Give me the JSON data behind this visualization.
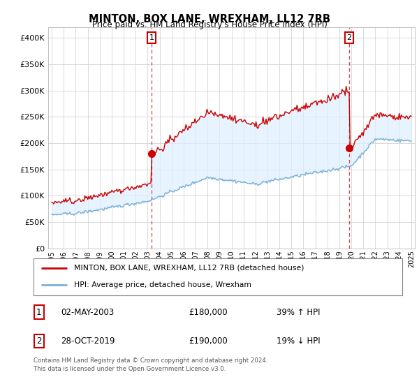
{
  "title": "MINTON, BOX LANE, WREXHAM, LL12 7RB",
  "subtitle": "Price paid vs. HM Land Registry's House Price Index (HPI)",
  "ylabel_ticks": [
    "£0",
    "£50K",
    "£100K",
    "£150K",
    "£200K",
    "£250K",
    "£300K",
    "£350K",
    "£400K"
  ],
  "ytick_values": [
    0,
    50000,
    100000,
    150000,
    200000,
    250000,
    300000,
    350000,
    400000
  ],
  "ylim": [
    0,
    420000
  ],
  "xlim_start": 1994.7,
  "xlim_end": 2025.3,
  "red_color": "#cc0000",
  "blue_color": "#7ab0d4",
  "fill_color": "#ddeeff",
  "dashed_line_color": "#dd4444",
  "transaction_1": {
    "date_x": 2003.33,
    "price": 180000,
    "label": "1"
  },
  "transaction_2": {
    "date_x": 2019.83,
    "price": 190000,
    "label": "2"
  },
  "legend_entry_1": "MINTON, BOX LANE, WREXHAM, LL12 7RB (detached house)",
  "legend_entry_2": "HPI: Average price, detached house, Wrexham",
  "footer": "Contains HM Land Registry data © Crown copyright and database right 2024.\nThis data is licensed under the Open Government Licence v3.0.",
  "xtick_years": [
    1995,
    1996,
    1997,
    1998,
    1999,
    2000,
    2001,
    2002,
    2003,
    2004,
    2005,
    2006,
    2007,
    2008,
    2009,
    2010,
    2011,
    2012,
    2013,
    2014,
    2015,
    2016,
    2017,
    2018,
    2019,
    2020,
    2021,
    2022,
    2023,
    2024,
    2025
  ]
}
